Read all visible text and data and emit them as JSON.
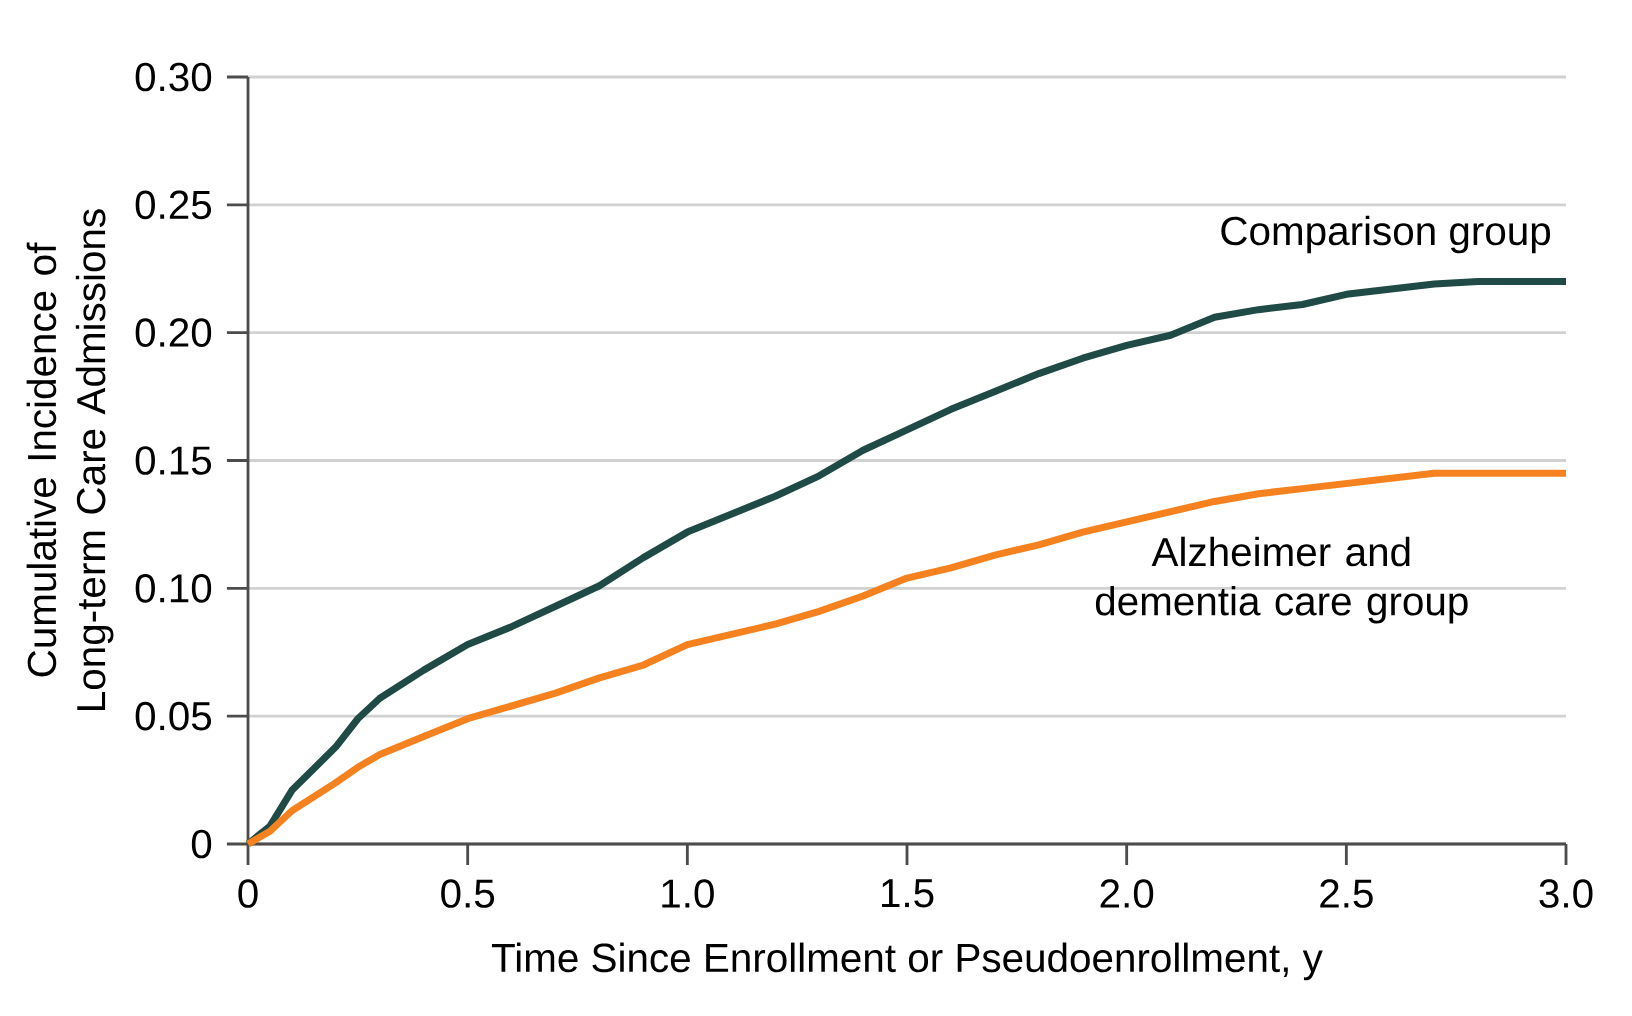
{
  "chart_data": {
    "type": "line",
    "xlabel": "Time Since Enrollment or Pseudoenrollment, y",
    "ylabel": "Cumulative Incidence of Long-term Care Admissions",
    "xlim": [
      0,
      3.0
    ],
    "ylim": [
      0,
      0.3
    ],
    "xticks": [
      {
        "value": 0,
        "label": "0"
      },
      {
        "value": 0.5,
        "label": "0.5"
      },
      {
        "value": 1.0,
        "label": "1.0"
      },
      {
        "value": 1.5,
        "label": "1.5"
      },
      {
        "value": 2.0,
        "label": "2.0"
      },
      {
        "value": 2.5,
        "label": "2.5"
      },
      {
        "value": 3.0,
        "label": "3.0"
      }
    ],
    "yticks": [
      {
        "value": 0,
        "label": "0"
      },
      {
        "value": 0.05,
        "label": "0.05"
      },
      {
        "value": 0.1,
        "label": "0.10"
      },
      {
        "value": 0.15,
        "label": "0.15"
      },
      {
        "value": 0.2,
        "label": "0.20"
      },
      {
        "value": 0.25,
        "label": "0.25"
      },
      {
        "value": 0.3,
        "label": "0.30"
      }
    ],
    "grid": "y",
    "x": [
      0,
      0.05,
      0.1,
      0.2,
      0.25,
      0.3,
      0.4,
      0.5,
      0.6,
      0.7,
      0.8,
      0.9,
      1.0,
      1.1,
      1.2,
      1.3,
      1.4,
      1.5,
      1.6,
      1.7,
      1.8,
      1.9,
      2.0,
      2.1,
      2.2,
      2.3,
      2.4,
      2.5,
      2.6,
      2.7,
      2.8,
      3.0
    ],
    "series": [
      {
        "name": "Comparison group",
        "color": "#1f4a46",
        "values": [
          0,
          0.007,
          0.021,
          0.038,
          0.049,
          0.057,
          0.068,
          0.078,
          0.085,
          0.093,
          0.101,
          0.112,
          0.122,
          0.129,
          0.136,
          0.144,
          0.154,
          0.162,
          0.17,
          0.177,
          0.184,
          0.19,
          0.195,
          0.199,
          0.206,
          0.209,
          0.211,
          0.215,
          0.217,
          0.219,
          0.22,
          0.22
        ]
      },
      {
        "name": "Alzheimer and dementia care group",
        "color": "#f5821f",
        "values": [
          0,
          0.005,
          0.013,
          0.024,
          0.03,
          0.035,
          0.042,
          0.049,
          0.054,
          0.059,
          0.065,
          0.07,
          0.078,
          0.082,
          0.086,
          0.091,
          0.097,
          0.104,
          0.108,
          0.113,
          0.117,
          0.122,
          0.126,
          0.13,
          0.134,
          0.137,
          0.139,
          0.141,
          0.143,
          0.145,
          0.145,
          0.145
        ]
      }
    ]
  }
}
